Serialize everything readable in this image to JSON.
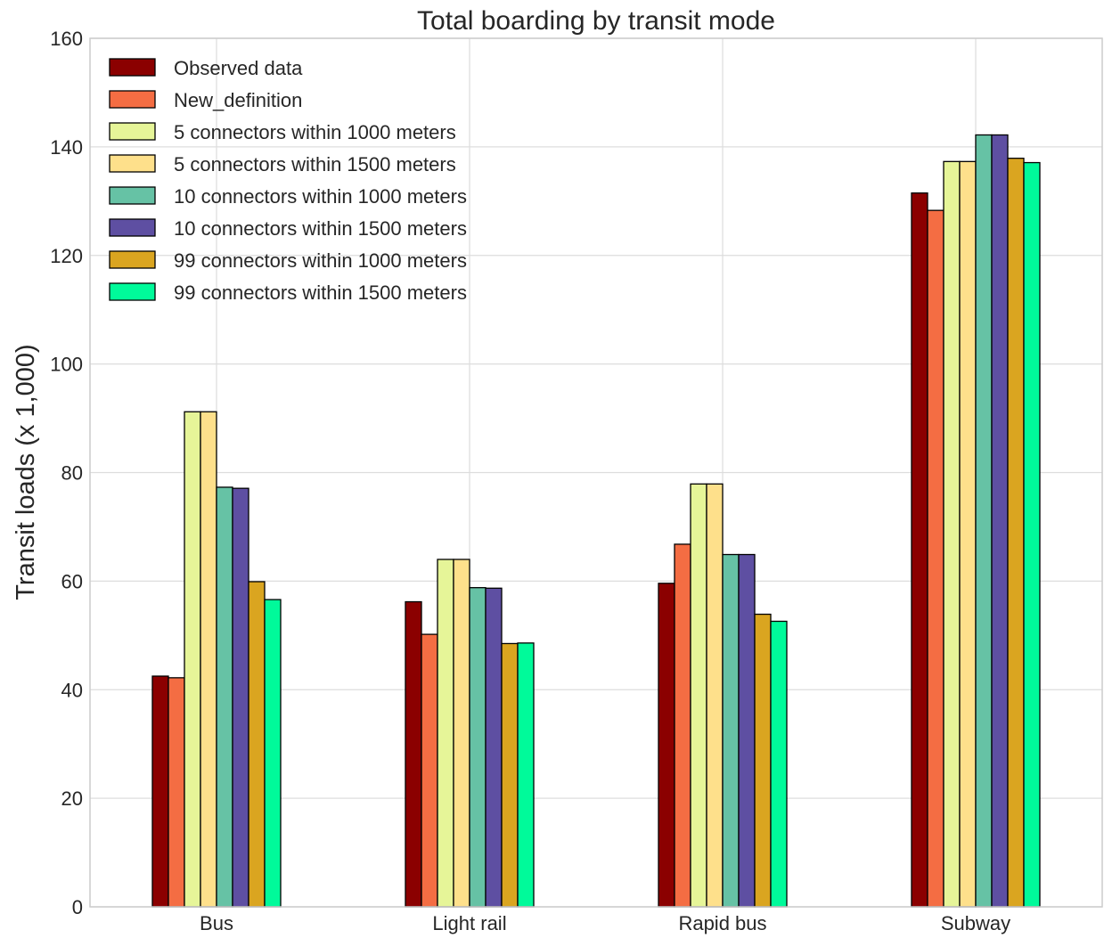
{
  "chart_data": {
    "type": "bar",
    "title": "Total boarding by transit mode",
    "xlabel": "",
    "ylabel": "Transit loads (x 1,000)",
    "ylim": [
      0,
      160
    ],
    "yticks": [
      0,
      20,
      40,
      60,
      80,
      100,
      120,
      140,
      160
    ],
    "grid": true,
    "legend_position": "top-left",
    "categories": [
      "Bus",
      "Light rail",
      "Rapid bus",
      "Subway"
    ],
    "series": [
      {
        "name": "Observed data",
        "color": "#8b0000",
        "values": [
          42.5,
          56.2,
          59.6,
          131.5
        ]
      },
      {
        "name": "New_definition",
        "color": "#f46d43",
        "values": [
          42.2,
          50.2,
          66.8,
          128.3
        ]
      },
      {
        "name": "5 connectors within 1000 meters",
        "color": "#e6f598",
        "values": [
          91.2,
          64.0,
          77.9,
          137.3
        ]
      },
      {
        "name": "5 connectors within 1500 meters",
        "color": "#fee08b",
        "values": [
          91.2,
          64.0,
          77.9,
          137.3
        ]
      },
      {
        "name": "10 connectors within 1000 meters",
        "color": "#66c2a5",
        "values": [
          77.3,
          58.8,
          64.9,
          142.2
        ]
      },
      {
        "name": "10 connectors within 1500 meters",
        "color": "#5e4fa2",
        "values": [
          77.1,
          58.7,
          64.9,
          142.2
        ]
      },
      {
        "name": "99 connectors within 1000 meters",
        "color": "#daa520",
        "values": [
          59.9,
          48.5,
          53.9,
          137.9
        ]
      },
      {
        "name": "99 connectors within 1500 meters",
        "color": "#00fa9a",
        "values": [
          56.6,
          48.6,
          52.6,
          137.1
        ]
      }
    ]
  }
}
